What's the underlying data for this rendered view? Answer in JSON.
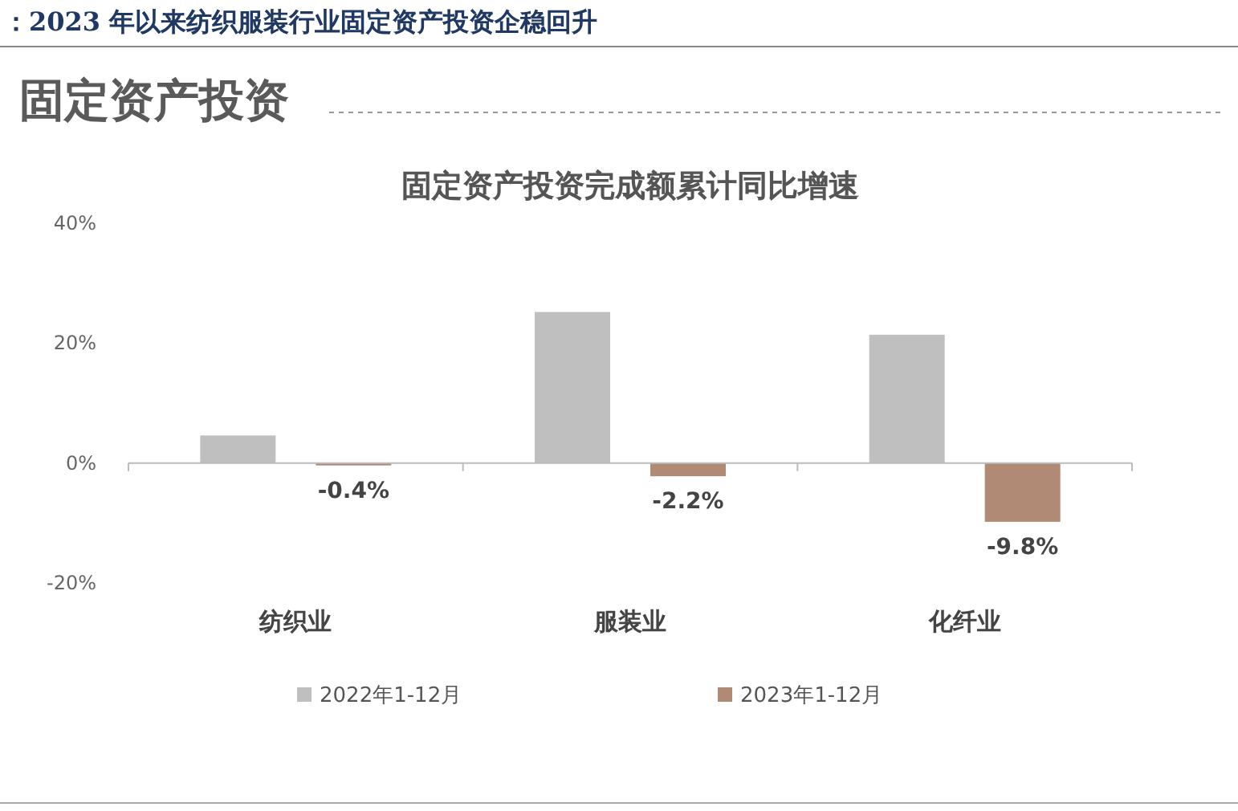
{
  "chart_data": {
    "type": "bar",
    "title": "固定资产投资完成额累计同比增速",
    "annotations": [
      "：2023 年以来纺织服装行业固定资产投资企稳回升",
      "固定资产投资"
    ],
    "categories": [
      "纺织业",
      "服装业",
      "化纤业"
    ],
    "series": [
      {
        "name": "2022年1-12月",
        "color": "#bfbfbf",
        "values": [
          4.6,
          25.2,
          21.4
        ]
      },
      {
        "name": "2023年1-12月",
        "color": "#b08a74",
        "values": [
          -0.4,
          -2.2,
          -9.8
        ],
        "value_labels": [
          "-0.4%",
          "-2.2%",
          "-9.8%"
        ]
      }
    ],
    "ylim": [
      -20,
      40
    ],
    "yticks": [
      {
        "value": -20,
        "label": "-20%"
      },
      {
        "value": 0,
        "label": "0%"
      },
      {
        "value": 20,
        "label": "20%"
      },
      {
        "value": 40,
        "label": "40%"
      }
    ],
    "legend": "bottom"
  }
}
